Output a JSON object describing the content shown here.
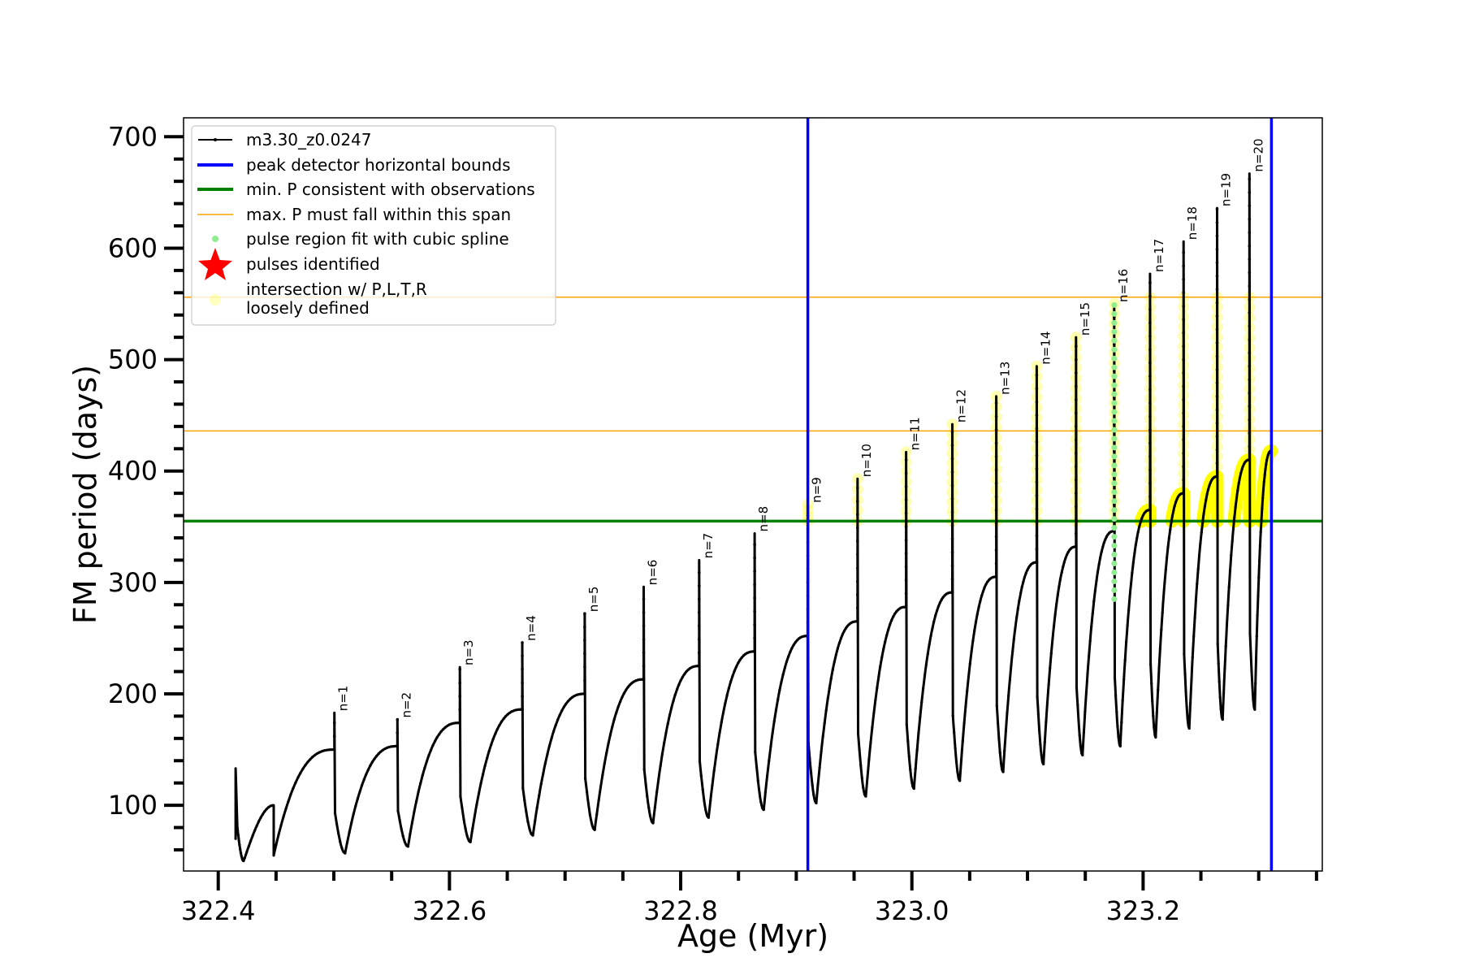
{
  "chart_data": {
    "type": "line",
    "xlabel": "Age (Myr)",
    "ylabel": "FM period (days)",
    "xlim": [
      322.37,
      323.355
    ],
    "ylim": [
      41,
      717
    ],
    "xticks": [
      322.4,
      322.6,
      322.8,
      323.0,
      323.2
    ],
    "xtick_labels": [
      "322.4",
      "322.6",
      "322.8",
      "323.0",
      "323.2"
    ],
    "yticks": [
      100,
      200,
      300,
      400,
      500,
      600,
      700
    ],
    "ytick_labels": [
      "100",
      "200",
      "300",
      "400",
      "500",
      "600",
      "700"
    ],
    "grid": false,
    "legend_position": "top-left",
    "legend": [
      {
        "label": "m3.30_z0.0247",
        "color": "#000000",
        "kind": "line-marker"
      },
      {
        "label": "peak detector horizontal bounds",
        "color": "#0000ff",
        "kind": "line"
      },
      {
        "label": "min. P consistent with observations",
        "color": "#008000",
        "kind": "line"
      },
      {
        "label": "max. P must fall within this span",
        "color": "#ffa500",
        "kind": "thin-line"
      },
      {
        "label": "pulse region fit with cubic spline",
        "color": "#90ee90",
        "kind": "dot"
      },
      {
        "label": "pulses identified",
        "color": "#ff0000",
        "kind": "star"
      },
      {
        "label": "intersection w/ P,L,T,R",
        "label2": "loosely defined",
        "color": "#ffff00",
        "kind": "circle"
      }
    ],
    "vertical_lines": [
      322.91,
      323.311
    ],
    "min_period_line": 355,
    "max_period_span": [
      436,
      556
    ],
    "initial_segment": {
      "start_age": 322.415,
      "start_period": 133,
      "dip_age": 322.422,
      "dip_period": 50,
      "bump_age": 322.448,
      "bump_period": 100,
      "bump_drop_period": 55
    },
    "pulses": [
      {
        "label": "n=1",
        "age": 322.5005,
        "peak": 183,
        "plateau_before": 150,
        "min_after": 57
      },
      {
        "label": "n=2",
        "age": 322.555,
        "peak": 177,
        "plateau_before": 153,
        "min_after": 63
      },
      {
        "label": "n=3",
        "age": 322.609,
        "peak": 224,
        "plateau_before": 174,
        "min_after": 67
      },
      {
        "label": "n=4",
        "age": 322.663,
        "peak": 246,
        "plateau_before": 186,
        "min_after": 73
      },
      {
        "label": "n=5",
        "age": 322.717,
        "peak": 272,
        "plateau_before": 200,
        "min_after": 78
      },
      {
        "label": "n=6",
        "age": 322.768,
        "peak": 296,
        "plateau_before": 213,
        "min_after": 84
      },
      {
        "label": "n=7",
        "age": 322.816,
        "peak": 320,
        "plateau_before": 225,
        "min_after": 89
      },
      {
        "label": "n=8",
        "age": 322.864,
        "peak": 344,
        "plateau_before": 238,
        "min_after": 96
      },
      {
        "label": "n=9",
        "age": 322.91,
        "peak": 370,
        "plateau_before": 252,
        "min_after": 102
      },
      {
        "label": "n=10",
        "age": 322.953,
        "peak": 393,
        "plateau_before": 265,
        "min_after": 108
      },
      {
        "label": "n=11",
        "age": 322.995,
        "peak": 417,
        "plateau_before": 278,
        "min_after": 115
      },
      {
        "label": "n=12",
        "age": 323.035,
        "peak": 442,
        "plateau_before": 291,
        "min_after": 122
      },
      {
        "label": "n=13",
        "age": 323.073,
        "peak": 467,
        "plateau_before": 305,
        "min_after": 130
      },
      {
        "label": "n=14",
        "age": 323.108,
        "peak": 494,
        "plateau_before": 318,
        "min_after": 137
      },
      {
        "label": "n=15",
        "age": 323.142,
        "peak": 520,
        "plateau_before": 332,
        "min_after": 145
      },
      {
        "label": "n=16",
        "age": 323.175,
        "peak": 550,
        "plateau_before": 346,
        "min_after": 153
      },
      {
        "label": "n=17",
        "age": 323.206,
        "peak": 577,
        "plateau_before": 365,
        "min_after": 161
      },
      {
        "label": "n=18",
        "age": 323.235,
        "peak": 606,
        "plateau_before": 380,
        "min_after": 169
      },
      {
        "label": "n=19",
        "age": 323.264,
        "peak": 636,
        "plateau_before": 395,
        "min_after": 177
      },
      {
        "label": "n=20",
        "age": 323.292,
        "peak": 667,
        "plateau_before": 410,
        "min_after": 186
      }
    ],
    "final_segment": {
      "end_age": 323.311,
      "end_period": 418
    },
    "spline_pulse": "n=16",
    "loosely_defined_from_pulse": 9
  }
}
